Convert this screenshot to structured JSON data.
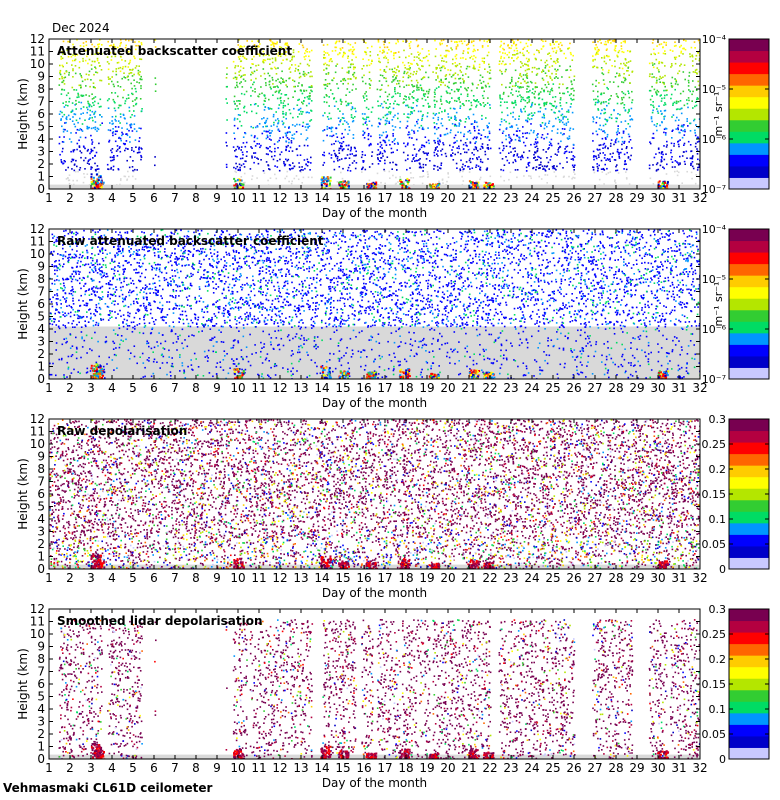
{
  "header": {
    "date": "Dec 2024"
  },
  "footer": {
    "instrument": "Vehmasmaki CL61D ceilometer"
  },
  "colors": {
    "background": "#ffffff",
    "frame": "#000000",
    "below_threshold": "#d9d9d9",
    "colormap": [
      "#c8c8ff",
      "#0000c8",
      "#0000ff",
      "#0096ff",
      "#00dc64",
      "#32cd32",
      "#b4e600",
      "#ffff00",
      "#ffcc00",
      "#ff6600",
      "#ff0000",
      "#b40040",
      "#780050"
    ]
  },
  "chart_data": [
    {
      "type": "heatmap",
      "title": "Attenuated backscatter coefficient",
      "xlabel": "Day of the month",
      "ylabel": "Height (km)",
      "xlim": [
        1,
        32
      ],
      "ylim": [
        0,
        12
      ],
      "x_ticks": [
        1,
        2,
        3,
        4,
        5,
        6,
        7,
        8,
        9,
        10,
        11,
        12,
        13,
        14,
        15,
        16,
        17,
        18,
        19,
        20,
        21,
        22,
        23,
        24,
        25,
        26,
        27,
        28,
        29,
        30,
        31,
        32
      ],
      "y_ticks": [
        0,
        1,
        2,
        3,
        4,
        5,
        6,
        7,
        8,
        9,
        10,
        11,
        12
      ],
      "colorbar": {
        "scale": "log",
        "unit": "m⁻¹ sr⁻¹",
        "range": [
          1e-07,
          0.0001
        ],
        "ticks": [
          {
            "value": 1e-07,
            "label": "10⁻⁷"
          },
          {
            "value": 1e-06,
            "label": "10⁻⁶"
          },
          {
            "value": 1e-05,
            "label": "10⁻⁵"
          },
          {
            "value": 0.0001,
            "label": "10⁻⁴"
          }
        ]
      },
      "variant": "backscatter"
    },
    {
      "type": "heatmap",
      "title": "Raw attenuated backscatter coefficient",
      "xlabel": "Day of the month",
      "ylabel": "Height (km)",
      "xlim": [
        1,
        32
      ],
      "ylim": [
        0,
        12
      ],
      "x_ticks": [
        1,
        2,
        3,
        4,
        5,
        6,
        7,
        8,
        9,
        10,
        11,
        12,
        13,
        14,
        15,
        16,
        17,
        18,
        19,
        20,
        21,
        22,
        23,
        24,
        25,
        26,
        27,
        28,
        29,
        30,
        31,
        32
      ],
      "y_ticks": [
        0,
        1,
        2,
        3,
        4,
        5,
        6,
        7,
        8,
        9,
        10,
        11,
        12
      ],
      "colorbar": {
        "scale": "log",
        "unit": "m⁻¹ sr⁻¹",
        "range": [
          1e-07,
          0.0001
        ],
        "ticks": [
          {
            "value": 1e-07,
            "label": "10⁻⁷"
          },
          {
            "value": 1e-06,
            "label": "10⁻⁶"
          },
          {
            "value": 1e-05,
            "label": "10⁻⁵"
          },
          {
            "value": 0.0001,
            "label": "10⁻⁴"
          }
        ]
      },
      "variant": "raw_backscatter"
    },
    {
      "type": "heatmap",
      "title": "Raw depolarisation",
      "xlabel": "Day of the month",
      "ylabel": "Height (km)",
      "xlim": [
        1,
        32
      ],
      "ylim": [
        0,
        12
      ],
      "x_ticks": [
        1,
        2,
        3,
        4,
        5,
        6,
        7,
        8,
        9,
        10,
        11,
        12,
        13,
        14,
        15,
        16,
        17,
        18,
        19,
        20,
        21,
        22,
        23,
        24,
        25,
        26,
        27,
        28,
        29,
        30,
        31,
        32
      ],
      "y_ticks": [
        0,
        1,
        2,
        3,
        4,
        5,
        6,
        7,
        8,
        9,
        10,
        11,
        12
      ],
      "colorbar": {
        "scale": "linear",
        "unit": "",
        "range": [
          0,
          0.3
        ],
        "ticks": [
          {
            "value": 0,
            "label": "0"
          },
          {
            "value": 0.05,
            "label": "0.05"
          },
          {
            "value": 0.1,
            "label": "0.1"
          },
          {
            "value": 0.15,
            "label": "0.15"
          },
          {
            "value": 0.2,
            "label": "0.2"
          },
          {
            "value": 0.25,
            "label": "0.25"
          },
          {
            "value": 0.3,
            "label": "0.3"
          }
        ]
      },
      "variant": "raw_depol"
    },
    {
      "type": "heatmap",
      "title": "Smoothed lidar depolarisation",
      "xlabel": "Day of the month",
      "ylabel": "Height (km)",
      "xlim": [
        1,
        32
      ],
      "ylim": [
        0,
        12
      ],
      "x_ticks": [
        1,
        2,
        3,
        4,
        5,
        6,
        7,
        8,
        9,
        10,
        11,
        12,
        13,
        14,
        15,
        16,
        17,
        18,
        19,
        20,
        21,
        22,
        23,
        24,
        25,
        26,
        27,
        28,
        29,
        30,
        31,
        32
      ],
      "y_ticks": [
        0,
        1,
        2,
        3,
        4,
        5,
        6,
        7,
        8,
        9,
        10,
        11,
        12
      ],
      "colorbar": {
        "scale": "linear",
        "unit": "",
        "range": [
          0,
          0.3
        ],
        "ticks": [
          {
            "value": 0,
            "label": "0"
          },
          {
            "value": 0.05,
            "label": "0.05"
          },
          {
            "value": 0.1,
            "label": "0.1"
          },
          {
            "value": 0.15,
            "label": "0.15"
          },
          {
            "value": 0.2,
            "label": "0.2"
          },
          {
            "value": 0.25,
            "label": "0.25"
          },
          {
            "value": 0.3,
            "label": "0.3"
          }
        ]
      },
      "variant": "smooth_depol"
    }
  ],
  "clear_periods_days": [
    [
      1.0,
      1.45
    ],
    [
      3.5,
      3.75
    ],
    [
      5.4,
      6.0
    ],
    [
      6.05,
      9.4
    ],
    [
      9.45,
      9.75
    ],
    [
      10.4,
      10.55
    ],
    [
      13.5,
      14.0
    ],
    [
      15.6,
      15.85
    ],
    [
      16.4,
      16.6
    ],
    [
      17.7,
      17.8
    ],
    [
      19.1,
      19.25
    ],
    [
      22.0,
      22.4
    ],
    [
      26.0,
      26.85
    ],
    [
      28.75,
      29.55
    ],
    [
      30.4,
      30.55
    ]
  ]
}
